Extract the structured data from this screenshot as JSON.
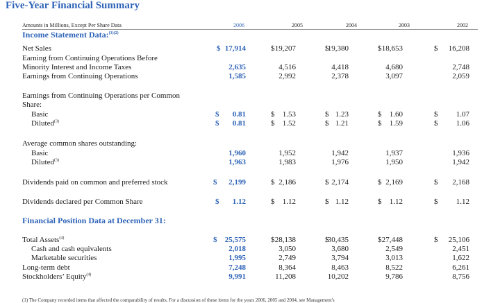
{
  "title": "Five-Year Financial Summary",
  "units_note": "Amounts in Millions, Except Per Share Data",
  "years": [
    "2006",
    "2005",
    "2004",
    "2003",
    "2002"
  ],
  "sections": {
    "income": {
      "label": "Income Statement Data:",
      "sup": "(1)(2)"
    },
    "position": {
      "label": "Financial Position Data at December 31:"
    }
  },
  "currency_symbol": "$",
  "rows": {
    "net_sales": {
      "label": "Net Sales",
      "values": [
        "17,914",
        "19,207",
        "19,380",
        "18,653",
        "16,208"
      ]
    },
    "ecobmi_1": {
      "label": "Earning from Continuing Operations Before"
    },
    "ecobmi_2": {
      "label": "Minority Interest and Income Taxes",
      "values": [
        "2,635",
        "4,516",
        "4,418",
        "4,680",
        "2,748"
      ]
    },
    "eco": {
      "label": "Earnings from Continuing Operations",
      "values": [
        "1,585",
        "2,992",
        "2,378",
        "3,097",
        "2,059"
      ]
    },
    "eps_head_1": {
      "label": "Earnings from Continuing Operations per Common"
    },
    "eps_head_2": {
      "label": "Share:"
    },
    "eps_basic": {
      "label": "Basic",
      "values": [
        "0.81",
        "1.53",
        "1.23",
        "1.60",
        "1.07"
      ]
    },
    "eps_diluted": {
      "label": "Diluted",
      "sup": "(3)",
      "values": [
        "0.81",
        "1.52",
        "1.21",
        "1.59",
        "1.06"
      ]
    },
    "shares_head": {
      "label": "Average common shares outstanding:"
    },
    "shares_basic": {
      "label": "Basic",
      "values": [
        "1,960",
        "1,952",
        "1,942",
        "1,937",
        "1,936"
      ]
    },
    "shares_diluted": {
      "label": "Diluted",
      "sup": "(3)",
      "values": [
        "1,963",
        "1,983",
        "1,976",
        "1,950",
        "1,942"
      ]
    },
    "div_paid": {
      "label": "Dividends paid on common and preferred stock",
      "values": [
        "2,199",
        "2,186",
        "2,174",
        "2,169",
        "2,168"
      ]
    },
    "div_declared": {
      "label": "Dividends declared per Common Share",
      "values": [
        "1.12",
        "1.12",
        "1.12",
        "1.12",
        "1.12"
      ]
    },
    "total_assets": {
      "label": "Total Assets",
      "sup": "(4)",
      "values": [
        "25,575",
        "28,138",
        "30,435",
        "27,448",
        "25,106"
      ]
    },
    "cash": {
      "label": "Cash and cash equivalents",
      "values": [
        "2,018",
        "3,050",
        "3,680",
        "2,549",
        "2,451"
      ]
    },
    "securities": {
      "label": "Marketable securities",
      "values": [
        "1,995",
        "2,749",
        "3,794",
        "3,013",
        "1,622"
      ]
    },
    "ltd": {
      "label": "Long-term debt",
      "values": [
        "7,248",
        "8,364",
        "8,463",
        "8,522",
        "6,261"
      ]
    },
    "equity": {
      "label": "Stockholders’ Equity",
      "sup": "(4)",
      "values": [
        "9,991",
        "11,208",
        "10,202",
        "9,786",
        "8,756"
      ]
    }
  },
  "footnote": "(1) The Company recorded items that affected the comparability of results. For a discussion of these items for the years 2006, 2005 and 2004, see Management's"
}
